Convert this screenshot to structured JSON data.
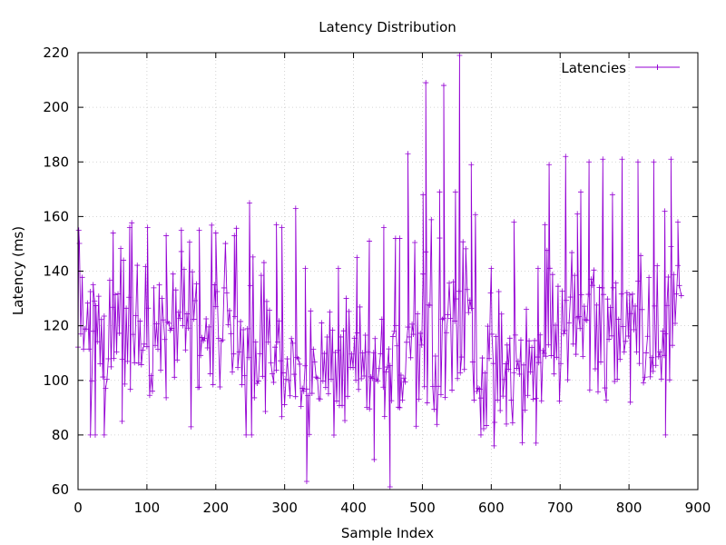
{
  "chart_data": {
    "type": "line",
    "title": "Latency Distribution",
    "xlabel": "Sample Index",
    "ylabel": "Latency (ms)",
    "xlim": [
      0,
      900
    ],
    "ylim": [
      60,
      220
    ],
    "xticks": [
      0,
      100,
      200,
      300,
      400,
      500,
      600,
      700,
      800,
      900
    ],
    "yticks": [
      60,
      80,
      100,
      120,
      140,
      160,
      180,
      200,
      220
    ],
    "grid": true,
    "legend_position": "top-right",
    "series": [
      {
        "name": "Latencies",
        "color": "#9400d3",
        "marker": "plus",
        "segments": [
          {
            "x_start": 0,
            "x_end": 280,
            "count": 140,
            "low": 80,
            "high": 165,
            "center": 118,
            "spread": 14,
            "spikes": [
              [
                1,
                155
              ],
              [
                18,
                80
              ],
              [
                22,
                135
              ],
              [
                25,
                80
              ],
              [
                38,
                80
              ],
              [
                51,
                154
              ],
              [
                64,
                85
              ],
              [
                75,
                156
              ],
              [
                101,
                156
              ],
              [
                128,
                153
              ],
              [
                150,
                155
              ],
              [
                176,
                155
              ],
              [
                200,
                154
              ],
              [
                227,
                153
              ],
              [
                249,
                165
              ]
            ]
          },
          {
            "x_start": 280,
            "x_end": 475,
            "count": 98,
            "low": 61,
            "high": 163,
            "center": 103,
            "spread": 9,
            "spikes": [
              [
                288,
                157
              ],
              [
                296,
                156
              ],
              [
                316,
                163
              ],
              [
                332,
                63
              ],
              [
                330,
                141
              ],
              [
                378,
                141
              ],
              [
                405,
                145
              ],
              [
                423,
                151
              ],
              [
                430,
                71
              ],
              [
                444,
                156
              ],
              [
                453,
                61
              ],
              [
                461,
                152
              ],
              [
                467,
                152
              ]
            ]
          },
          {
            "x_start": 475,
            "x_end": 585,
            "count": 55,
            "low": 80,
            "high": 219,
            "center": 122,
            "spread": 17,
            "spikes": [
              [
                479,
                183
              ],
              [
                505,
                209
              ],
              [
                531,
                208
              ],
              [
                554,
                219
              ],
              [
                571,
                179
              ],
              [
                501,
                168
              ],
              [
                525,
                169
              ],
              [
                548,
                169
              ],
              [
                585,
                80
              ]
            ]
          },
          {
            "x_start": 585,
            "x_end": 675,
            "count": 45,
            "low": 76,
            "high": 158,
            "center": 103,
            "spread": 11,
            "spikes": [
              [
                600,
                141
              ],
              [
                604,
                76
              ],
              [
                622,
                84
              ],
              [
                633,
                158
              ],
              [
                665,
                77
              ],
              [
                668,
                141
              ]
            ]
          },
          {
            "x_start": 675,
            "x_end": 875,
            "count": 100,
            "low": 80,
            "high": 182,
            "center": 121,
            "spread": 12,
            "spikes": [
              [
                678,
                157
              ],
              [
                684,
                179
              ],
              [
                708,
                182
              ],
              [
                725,
                161
              ],
              [
                730,
                169
              ],
              [
                742,
                180
              ],
              [
                762,
                181
              ],
              [
                776,
                168
              ],
              [
                790,
                181
              ],
              [
                802,
                92
              ],
              [
                813,
                180
              ],
              [
                836,
                180
              ],
              [
                852,
                162
              ],
              [
                853,
                80
              ],
              [
                861,
                181
              ],
              [
                871,
                158
              ],
              [
                876,
                131
              ]
            ]
          }
        ]
      }
    ]
  }
}
